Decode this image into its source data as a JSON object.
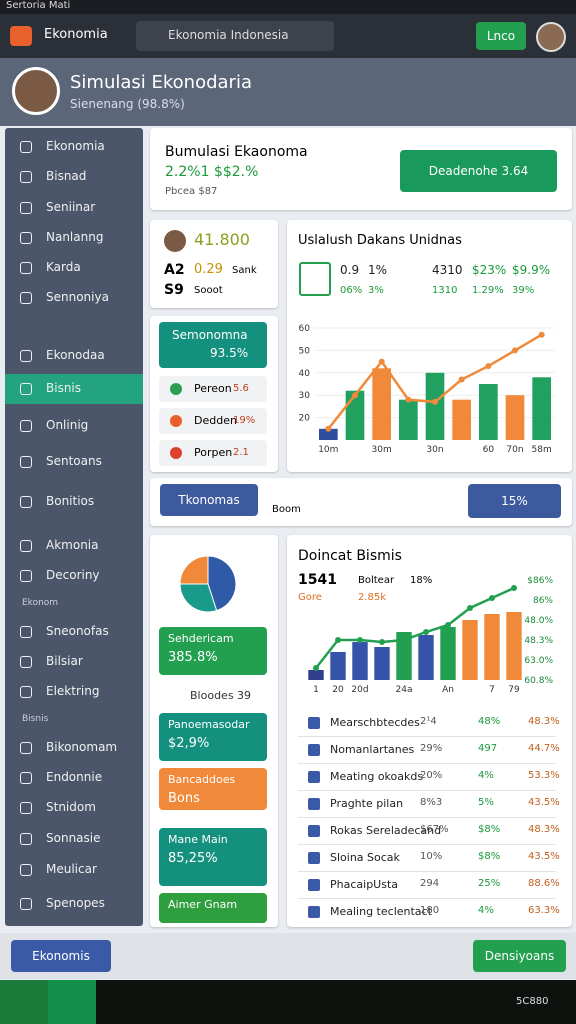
{
  "status_bar": {
    "title": "Sertoria Mati"
  },
  "app_bar": {
    "brand": "Ekonomia",
    "url": "Ekonomia Indonesia",
    "button": "Lnco"
  },
  "header": {
    "title": "Simulasi Ekonodaria",
    "subtitle": "Sienenang (98.8%)"
  },
  "sidebar": {
    "items": [
      {
        "label": "Ekonomia"
      },
      {
        "label": "Bisnad"
      },
      {
        "label": "Seniinar"
      },
      {
        "label": "Nanlanng"
      },
      {
        "label": "Karda"
      },
      {
        "label": "Sennoniya"
      },
      {
        "label": "Ekonodaa"
      },
      {
        "label": "Bisnis",
        "selected": true
      },
      {
        "label": "Onlinig"
      },
      {
        "label": "Sentoans"
      },
      {
        "label": "Bonitios"
      },
      {
        "label": "Akmonia"
      },
      {
        "label": "Decoriny"
      },
      {
        "section": "Ekonom"
      },
      {
        "label": "Sneonofas"
      },
      {
        "label": "Bilsiar"
      },
      {
        "label": "Elektring"
      },
      {
        "section": "Bisnis"
      },
      {
        "label": "Bikonomam"
      },
      {
        "label": "Endonnie"
      },
      {
        "label": "Stnidom"
      },
      {
        "label": "Sonnasie"
      },
      {
        "label": "Meulicar"
      },
      {
        "label": "Spenopes"
      }
    ]
  },
  "summary": {
    "title": "Bumulasi Ekaonoma",
    "value": "2.2%1 $$2.%",
    "note": "Pbcea $87",
    "button": "Deadenohe 3.64"
  },
  "profile_card": {
    "value": "41.800",
    "line1": [
      "A2",
      "0.29",
      "Sank"
    ],
    "line2": [
      "S9",
      "Sooot"
    ]
  },
  "side_list": {
    "head": [
      "Semonomna",
      "93.5%"
    ],
    "items": [
      {
        "label": "Pereon",
        "value": "5.6",
        "color": "#2e9e4f"
      },
      {
        "label": "Dedden",
        "value": "19%",
        "color": "#e8602c"
      },
      {
        "label": "Porpen",
        "value": "2.1",
        "color": "#e0402c"
      }
    ]
  },
  "action_row": {
    "left": "Tkonomas",
    "middle": "Boom",
    "right": "15%"
  },
  "chart1": {
    "type": "bar",
    "title": "Uslalush Dakans Unidnas",
    "stats": [
      [
        "0.9",
        "1%",
        "4310",
        "$23%",
        "$9.9%"
      ],
      [
        "06%",
        "3%",
        "1310",
        "1.29%",
        "39%"
      ]
    ],
    "categories": [
      "10m",
      null,
      "30m",
      null,
      "30n",
      null,
      "60",
      "70n",
      "58m"
    ],
    "values": [
      15,
      32,
      42,
      28,
      40,
      28,
      35,
      30,
      38
    ],
    "colors": [
      "#2f4f9e",
      "#22a060",
      "#f08a3a",
      "#22a060",
      "#22a060",
      "#f08a3a",
      "#22a060",
      "#f08a3a",
      "#22a060"
    ],
    "line": {
      "color": "#f08a3a",
      "values": [
        15,
        30,
        45,
        28,
        27,
        37,
        43,
        50,
        57
      ]
    },
    "ylim": [
      10,
      60
    ],
    "yticks": [
      20,
      30,
      40,
      50,
      60
    ]
  },
  "pie": {
    "type": "pie",
    "values": [
      45,
      30,
      25
    ],
    "colors": [
      "#2f5aa8",
      "#1a9a8a",
      "#f08a3a"
    ]
  },
  "left_boxes": [
    {
      "lines": [
        "Sehdericam",
        "385.8%"
      ],
      "color": "#22a050"
    },
    {
      "lines": [
        "Bloodes 39"
      ],
      "color": "plain"
    },
    {
      "lines": [
        "Panoemasodar",
        "$2,9%"
      ],
      "color": "#14907e"
    },
    {
      "lines": [
        "Bancaddoes",
        "Bons"
      ],
      "color": "#f08a3a"
    },
    {
      "lines": [
        "Mane Main",
        "85,25%"
      ],
      "color": "#14907e"
    },
    {
      "lines": [
        "Aimer Gnam"
      ],
      "color": "#2e9e3f"
    }
  ],
  "chart2": {
    "type": "bar",
    "title": "Doincat Bismis",
    "stat": [
      "1541",
      "Boltear",
      "18%"
    ],
    "sub": [
      "Gore",
      "2.85k"
    ],
    "categories": [
      "1",
      "20",
      "20d",
      null,
      "24a",
      null,
      "An",
      null,
      "7",
      "79"
    ],
    "values": [
      10,
      28,
      38,
      33,
      48,
      45,
      53,
      60,
      66,
      68
    ],
    "colors": [
      "#2f3f8e",
      "#3553a8",
      "#3553a8",
      "#3553a8",
      "#22a050",
      "#3553a8",
      "#22a050",
      "#f08a3a",
      "#f08a3a",
      "#f08a3a"
    ],
    "line": {
      "color": "#22a050",
      "values": [
        12,
        40,
        40,
        38,
        40,
        48,
        55,
        72,
        82,
        92
      ]
    },
    "ylim": [
      0,
      100
    ],
    "side_labels": [
      "$86%",
      "86%",
      "48.0%",
      "48.3%",
      "63.0%",
      "60.8%"
    ]
  },
  "table": {
    "rows": [
      [
        "Mearschbtecdes",
        "2¹4",
        "48%",
        "48.3%"
      ],
      [
        "Nomanlartanes",
        "29%",
        "497",
        "44.7%"
      ],
      [
        "Meating okoakds",
        "20%",
        "4%",
        "53.3%"
      ],
      [
        "Praghte pilan",
        "8%3",
        "5%",
        "43.5%"
      ],
      [
        "Rokas Sereladecand",
        "$67%",
        "$8%",
        "48.3%"
      ],
      [
        "Sloina Socak",
        "10%",
        "$8%",
        "43.5%"
      ],
      [
        "PhacaipUsta",
        "294",
        "25%",
        "88.6%"
      ],
      [
        "Mealing teclentact",
        "180",
        "4%",
        "63.3%"
      ]
    ]
  },
  "bottom_bar": {
    "left": "Ekonomis",
    "right": "Densiyoans"
  },
  "taskbar": {
    "time": "5C880"
  }
}
